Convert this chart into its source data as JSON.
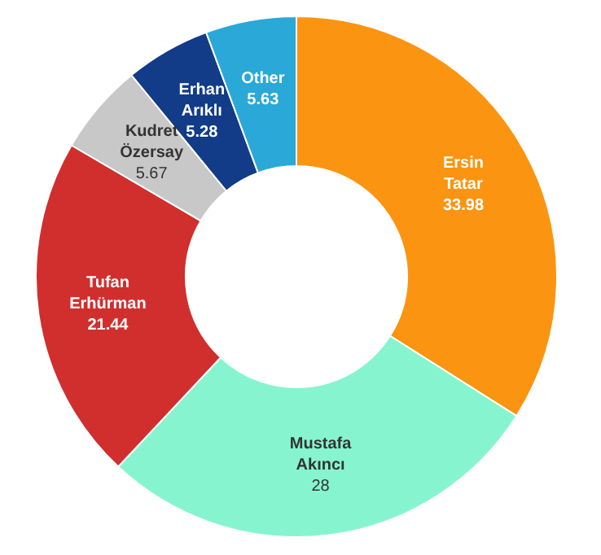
{
  "chart_data": {
    "type": "donut",
    "categories": [
      "Ersin Tatar",
      "Mustafa Akıncı",
      "Tufan Erhürman",
      "Kudret Özersay",
      "Erhan Arıklı",
      "Other"
    ],
    "values": [
      33.98,
      28,
      21.44,
      5.67,
      5.28,
      5.63
    ],
    "colors": [
      "#fb9410",
      "#86f5cf",
      "#d12e2e",
      "#c8c8c8",
      "#123b88",
      "#2aa8d8"
    ],
    "data_labels": true,
    "legend": false
  }
}
